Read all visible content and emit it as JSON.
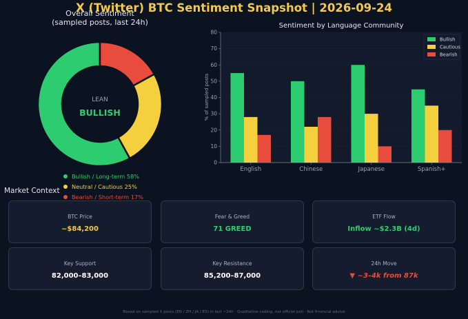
{
  "header": {
    "title": "X (Twitter) BTC Sentiment Snapshot  |  2026-09-24"
  },
  "donut": {
    "title_line1": "Overall Sentiment",
    "title_line2": "(sampled posts, last 24h)",
    "center_small": "LEAN",
    "center_big": "BULLISH",
    "legend": [
      {
        "label": "Bullish / Long-term  58%",
        "color": "#2ecc71"
      },
      {
        "label": "Neutral / Cautious  25%",
        "color": "#f4d03f"
      },
      {
        "label": "Bearish / Short-term  17%",
        "color": "#e74c3c"
      }
    ]
  },
  "chart_data": [
    {
      "type": "pie",
      "title": "Overall Sentiment (sampled posts, last 24h)",
      "categories": [
        "Bullish / Long-term",
        "Neutral / Cautious",
        "Bearish / Short-term"
      ],
      "values": [
        58,
        25,
        17
      ],
      "colors": [
        "#2ecc71",
        "#f4d03f",
        "#e74c3c"
      ]
    },
    {
      "type": "bar",
      "title": "Sentiment by Language Community",
      "categories": [
        "English",
        "Chinese",
        "Japanese",
        "Spanish+"
      ],
      "series": [
        {
          "name": "Bullish",
          "values": [
            55,
            50,
            60,
            45
          ],
          "color": "#2ecc71"
        },
        {
          "name": "Cautious",
          "values": [
            28,
            22,
            30,
            35
          ],
          "color": "#f4d03f"
        },
        {
          "name": "Bearish",
          "values": [
            17,
            28,
            10,
            20
          ],
          "color": "#e74c3c"
        }
      ],
      "ylabel": "% of sampled posts",
      "ylim": [
        0,
        80
      ],
      "yticks": [
        0,
        10,
        20,
        30,
        40,
        50,
        60,
        70,
        80
      ],
      "grid": true,
      "legend_position": "top-right"
    }
  ],
  "market": {
    "section_title": "Market Context",
    "cards": [
      {
        "label": "BTC Price",
        "value": "~$84,200",
        "color": "#f2c94c",
        "italic": false
      },
      {
        "label": "Fear & Greed",
        "value": "71  GREED",
        "color": "#2ecc71",
        "italic": false
      },
      {
        "label": "ETF Flow",
        "value": "Inflow ~$2.3B (4d)",
        "color": "#2ecc71",
        "italic": false
      },
      {
        "label": "Key Support",
        "value": "82,000–83,000",
        "color": "#ffffff",
        "italic": false
      },
      {
        "label": "Key Resistance",
        "value": "85,200–87,000",
        "color": "#ffffff",
        "italic": false
      },
      {
        "label": "24h Move",
        "value": "▼ ~3–4k from 87k",
        "color": "#e74c3c",
        "italic": true
      }
    ]
  },
  "footer": {
    "text": "Based on sampled X posts (EN / ZH / JA / ES) in last ~24h  ·  Qualitative coding, not official poll  ·  Not financial advice"
  }
}
